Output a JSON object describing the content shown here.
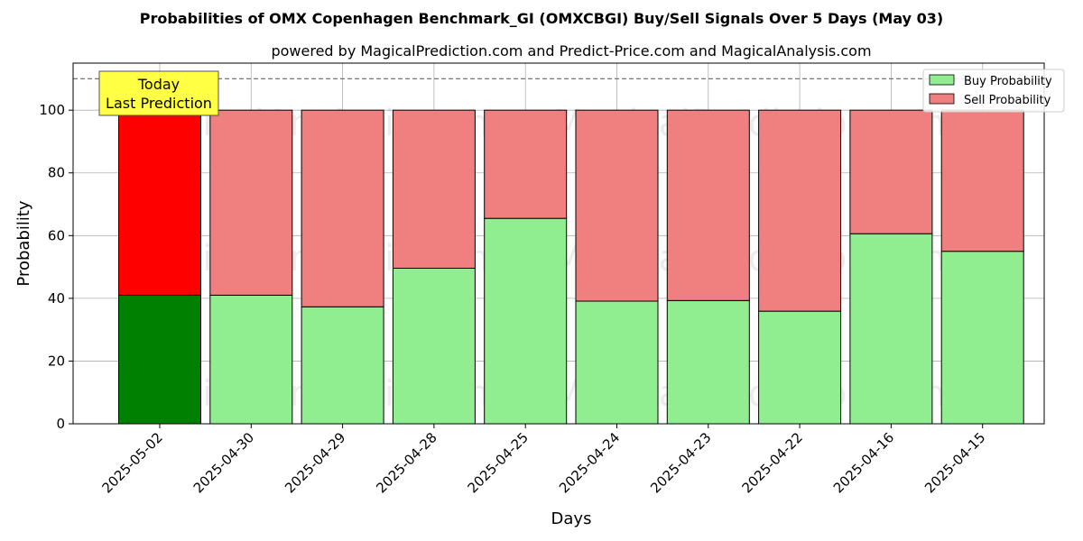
{
  "chart_data": {
    "type": "bar",
    "stacked": true,
    "title": "Probabilities of OMX Copenhagen Benchmark_GI (OMXCBGI) Buy/Sell Signals Over 5 Days (May 03)",
    "subtitle": "powered by MagicalPrediction.com and Predict-Price.com and MagicalAnalysis.com",
    "xlabel": "Days",
    "ylabel": "Probability",
    "ylim": [
      0,
      115
    ],
    "yticks": [
      0,
      20,
      40,
      60,
      80,
      100
    ],
    "grid": true,
    "legend_position": "top-right",
    "reference_line": 110,
    "categories": [
      "2025-05-02",
      "2025-04-30",
      "2025-04-29",
      "2025-04-28",
      "2025-04-25",
      "2025-04-24",
      "2025-04-23",
      "2025-04-22",
      "2025-04-16",
      "2025-04-15"
    ],
    "series": [
      {
        "name": "Buy Probability",
        "color": "#90ee90",
        "highlight_color": "#008000",
        "values": [
          41,
          41,
          37.3,
          49.6,
          65.5,
          39.1,
          39.3,
          35.9,
          60.6,
          55
        ]
      },
      {
        "name": "Sell Probability",
        "color": "#f08080",
        "highlight_color": "#ff0000",
        "values": [
          59,
          59,
          62.7,
          50.4,
          34.5,
          60.9,
          60.7,
          64.1,
          39.4,
          45
        ]
      }
    ],
    "highlight_index": 0,
    "annotation": {
      "line1": "Today",
      "line2": "Last Prediction",
      "background": "#ffff44"
    },
    "watermarks": [
      "MagicalAnalysis.com",
      "MagicalPrediction.com"
    ]
  }
}
